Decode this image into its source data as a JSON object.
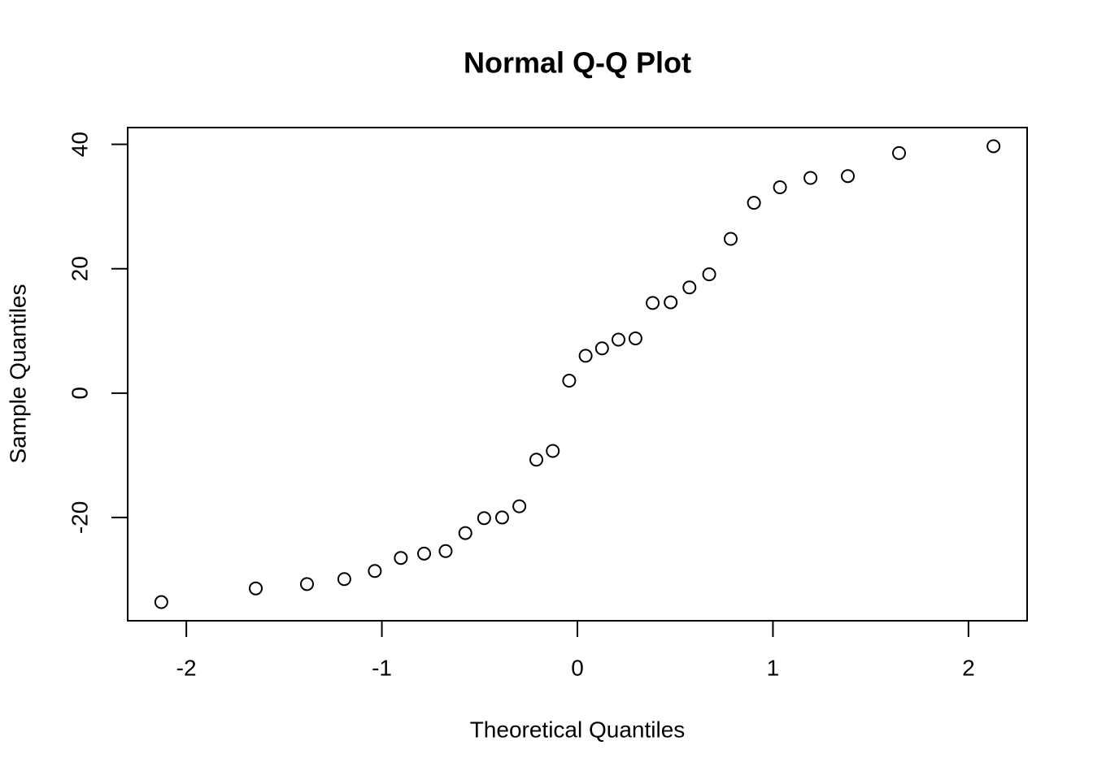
{
  "chart_data": {
    "type": "scatter",
    "title": "Normal Q-Q Plot",
    "x_label": "Theoretical Quantiles",
    "y_label": "Sample Quantiles",
    "color": "#000000",
    "x": [
      -2.128,
      -1.645,
      -1.383,
      -1.192,
      -1.036,
      -0.903,
      -0.784,
      -0.674,
      -0.573,
      -0.477,
      -0.385,
      -0.297,
      -0.21,
      -0.126,
      -0.042,
      0.042,
      0.126,
      0.21,
      0.297,
      0.385,
      0.477,
      0.573,
      0.674,
      0.784,
      0.903,
      1.036,
      1.192,
      1.383,
      1.645,
      2.128
    ],
    "values": [
      -33.6,
      -31.4,
      -30.7,
      -29.9,
      -28.6,
      -26.5,
      -25.8,
      -25.4,
      -22.5,
      -20.1,
      -20.0,
      -18.2,
      -10.7,
      -9.3,
      2.0,
      6.0,
      7.2,
      8.6,
      8.8,
      14.5,
      14.6,
      17.0,
      19.1,
      24.8,
      30.6,
      33.1,
      34.6,
      34.9,
      38.6,
      39.7
    ],
    "xlim": [
      -2.3,
      2.3
    ],
    "ylim": [
      -36.6,
      42.7
    ],
    "xticks": [
      -2,
      -1,
      0,
      1,
      2
    ],
    "yticks": [
      -20,
      0,
      20,
      40
    ]
  }
}
